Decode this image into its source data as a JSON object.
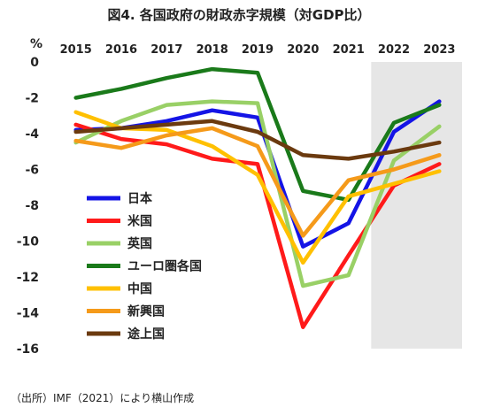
{
  "chart_data": {
    "type": "line",
    "title": "図4. 各国政府の財政赤字規模（対GDP比）",
    "unit_label": "%",
    "source": "（出所）IMF（2021）により横山作成",
    "x": [
      "2015",
      "2016",
      "2017",
      "2018",
      "2019",
      "2020",
      "2021",
      "2022",
      "2023"
    ],
    "ylim": [
      -16,
      0
    ],
    "yticks": [
      0,
      -2,
      -4,
      -6,
      -8,
      -10,
      -12,
      -14,
      -16
    ],
    "forecast_shaded_from": "2022",
    "grid": false,
    "legend_position": "inside-left",
    "series": [
      {
        "name": "日本",
        "color": "#1414e6",
        "values": [
          -3.8,
          -3.7,
          -3.3,
          -2.7,
          -3.1,
          -10.3,
          -9.0,
          -3.9,
          -2.2
        ]
      },
      {
        "name": "米国",
        "color": "#ff1a1a",
        "values": [
          -3.5,
          -4.3,
          -4.6,
          -5.4,
          -5.7,
          -14.8,
          -10.8,
          -6.9,
          -5.7
        ]
      },
      {
        "name": "英国",
        "color": "#99d066",
        "values": [
          -4.5,
          -3.3,
          -2.4,
          -2.2,
          -2.3,
          -12.5,
          -11.9,
          -5.5,
          -3.6
        ]
      },
      {
        "name": "ユーロ圏各国",
        "color": "#1a7a1a",
        "values": [
          -2.0,
          -1.5,
          -0.9,
          -0.4,
          -0.6,
          -7.2,
          -7.7,
          -3.4,
          -2.4
        ]
      },
      {
        "name": "中国",
        "color": "#ffc000",
        "values": [
          -2.8,
          -3.7,
          -3.8,
          -4.7,
          -6.3,
          -11.2,
          -7.5,
          -6.8,
          -6.1
        ]
      },
      {
        "name": "新興国",
        "color": "#f59a1a",
        "values": [
          -4.4,
          -4.8,
          -4.1,
          -3.7,
          -4.7,
          -9.7,
          -6.6,
          -6.0,
          -5.2
        ]
      },
      {
        "name": "途上国",
        "color": "#6b3a0f",
        "values": [
          -3.9,
          -3.7,
          -3.5,
          -3.3,
          -3.9,
          -5.2,
          -5.4,
          -5.0,
          -4.5
        ]
      }
    ]
  }
}
